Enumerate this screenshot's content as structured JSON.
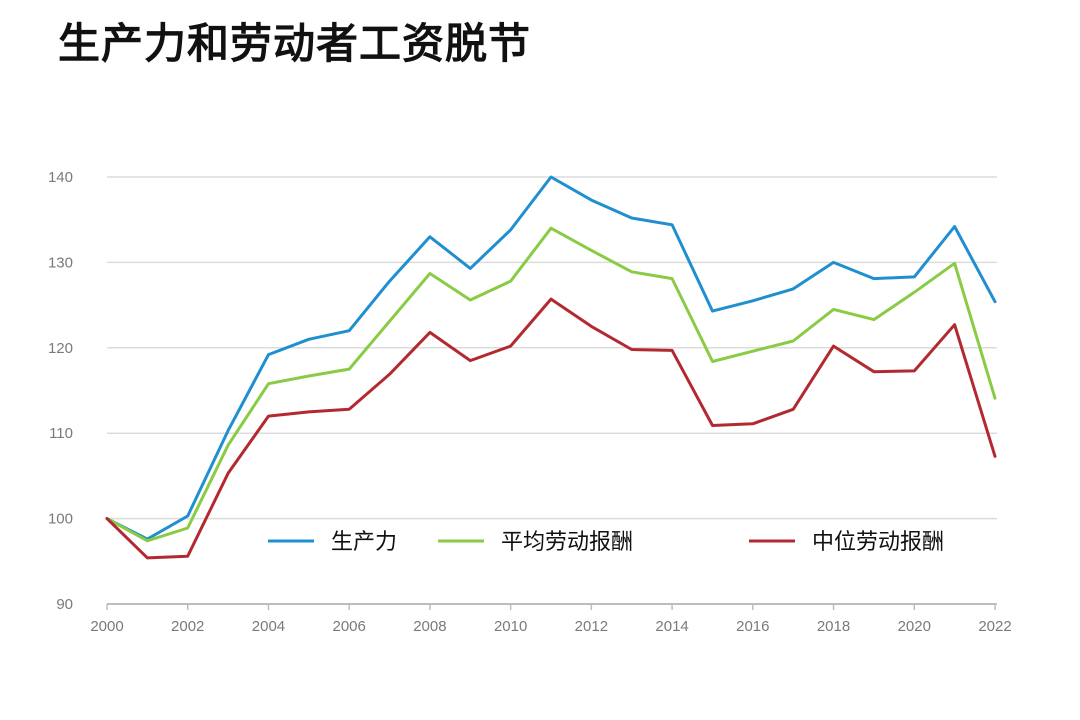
{
  "title": "生产力和劳动者工资脱节",
  "chart_data": {
    "type": "line",
    "title": "生产力和劳动者工资脱节",
    "xlabel": "",
    "ylabel": "",
    "xlim": [
      2000,
      2022
    ],
    "ylim": [
      90,
      140
    ],
    "x": [
      2000,
      2001,
      2002,
      2003,
      2004,
      2005,
      2006,
      2007,
      2008,
      2009,
      2010,
      2011,
      2012,
      2013,
      2014,
      2015,
      2016,
      2017,
      2018,
      2019,
      2020,
      2021,
      2022
    ],
    "x_tick_labels": [
      "2000",
      "2002",
      "2004",
      "2006",
      "2008",
      "2010",
      "2012",
      "2014",
      "2016",
      "2018",
      "2020",
      "2022"
    ],
    "y_tick_labels": [
      "90",
      "100",
      "110",
      "120",
      "130",
      "140"
    ],
    "grid": true,
    "legend_position": "middle",
    "series": [
      {
        "name": "生产力",
        "color": "#1f8fd0",
        "values": [
          100,
          97.6,
          100.3,
          110.3,
          119.2,
          121.0,
          122.0,
          127.8,
          133.0,
          129.3,
          133.8,
          140.0,
          137.3,
          135.2,
          134.4,
          124.3,
          125.5,
          126.9,
          130.0,
          128.1,
          128.3,
          134.2,
          125.4
        ]
      },
      {
        "name": "平均劳动报酬",
        "color": "#8acb45",
        "values": [
          100,
          97.4,
          98.9,
          108.6,
          115.8,
          116.7,
          117.5,
          123.1,
          128.7,
          125.6,
          127.8,
          134.0,
          131.4,
          128.9,
          128.1,
          118.4,
          119.6,
          120.8,
          124.5,
          123.3,
          126.5,
          129.9,
          114.1
        ]
      },
      {
        "name": "中位劳动报酬",
        "color": "#b22a30",
        "values": [
          100,
          95.4,
          95.6,
          105.3,
          112.0,
          112.5,
          112.8,
          116.9,
          121.8,
          118.5,
          120.2,
          125.7,
          122.5,
          119.8,
          119.7,
          110.9,
          111.1,
          112.8,
          120.2,
          117.2,
          117.3,
          122.7,
          107.3
        ]
      }
    ]
  }
}
